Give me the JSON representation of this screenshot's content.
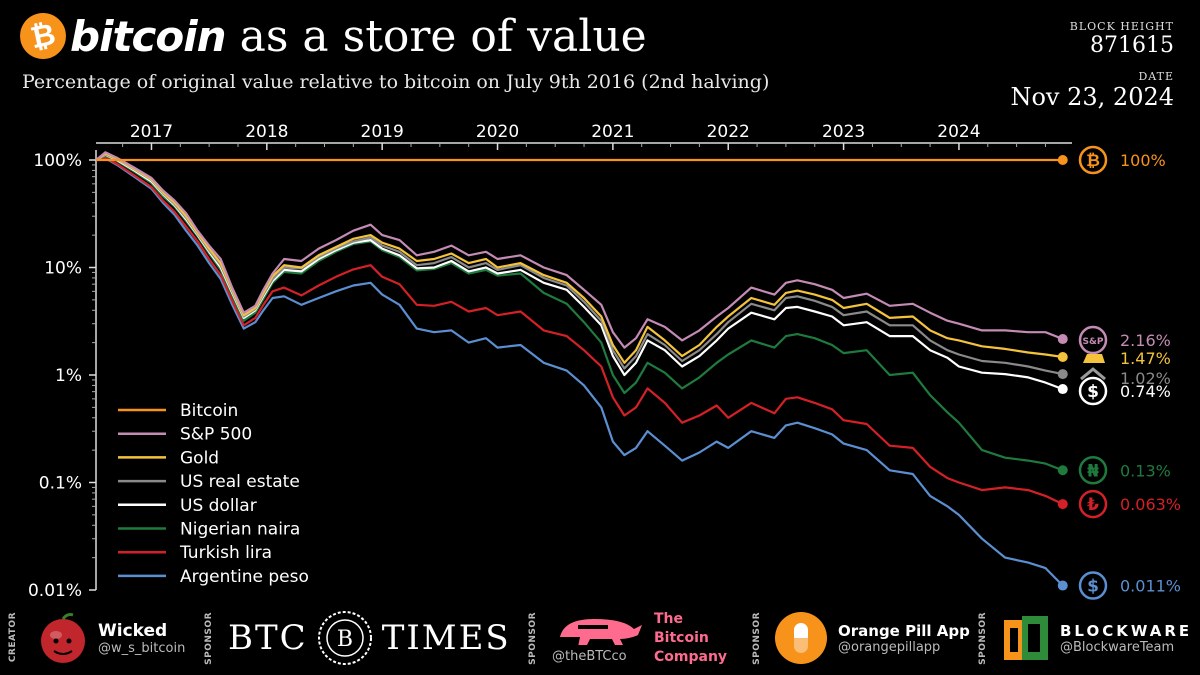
{
  "header": {
    "title_brand": "bitcoin",
    "title_rest": "as a store of value",
    "subtitle": "Percentage of original value relative to bitcoin on July 9th 2016 (2nd halving)",
    "block_height_label": "BLOCK HEIGHT",
    "block_height": "871615",
    "date_label": "DATE",
    "date": "Nov 23, 2024"
  },
  "chart_data": {
    "type": "line",
    "y_scale": "log",
    "ylim": [
      0.01,
      100
    ],
    "y_ticks": [
      "100%",
      "10%",
      "1%",
      "0.1%",
      "0.01%"
    ],
    "x_tick_labels": [
      "2017",
      "2018",
      "2019",
      "2020",
      "2021",
      "2022",
      "2023",
      "2024"
    ],
    "x_range": [
      "2016-07-09",
      "2024-11-23"
    ],
    "grid": false,
    "legend_position": "bottom-left",
    "x": [
      2016.52,
      2016.6,
      2016.7,
      2016.85,
      2017.0,
      2017.1,
      2017.2,
      2017.3,
      2017.4,
      2017.5,
      2017.6,
      2017.7,
      2017.8,
      2017.9,
      2017.97,
      2018.05,
      2018.15,
      2018.3,
      2018.45,
      2018.6,
      2018.75,
      2018.9,
      2019.0,
      2019.15,
      2019.3,
      2019.45,
      2019.6,
      2019.75,
      2019.9,
      2020.0,
      2020.2,
      2020.4,
      2020.6,
      2020.75,
      2020.9,
      2021.0,
      2021.1,
      2021.2,
      2021.3,
      2021.45,
      2021.6,
      2021.75,
      2021.9,
      2022.0,
      2022.2,
      2022.4,
      2022.5,
      2022.6,
      2022.75,
      2022.9,
      2023.0,
      2023.2,
      2023.4,
      2023.6,
      2023.75,
      2023.9,
      2024.0,
      2024.2,
      2024.4,
      2024.6,
      2024.75,
      2024.9
    ],
    "series": [
      {
        "name": "Bitcoin",
        "color": "#f7931a",
        "end_label": "100%",
        "icon": "bitcoin",
        "values": [
          100,
          100,
          100,
          100,
          100,
          100,
          100,
          100,
          100,
          100,
          100,
          100,
          100,
          100,
          100,
          100,
          100,
          100,
          100,
          100,
          100,
          100,
          100,
          100,
          100,
          100,
          100,
          100,
          100,
          100,
          100,
          100,
          100,
          100,
          100,
          100,
          100,
          100,
          100,
          100,
          100,
          100,
          100,
          100,
          100,
          100,
          100,
          100,
          100,
          100,
          100,
          100,
          100,
          100,
          100,
          100,
          100,
          100,
          100,
          100,
          100,
          100
        ]
      },
      {
        "name": "S&P 500",
        "color": "#c48bb4",
        "end_label": "2.16%",
        "icon": "sp500",
        "values": [
          100,
          118,
          105,
          85,
          68,
          52,
          42,
          32,
          22,
          16,
          12,
          6.5,
          3.8,
          4.4,
          6.2,
          8.8,
          12,
          11.5,
          15,
          18,
          22,
          25,
          20,
          18,
          13,
          14,
          16,
          13,
          14,
          12,
          13,
          10,
          8.5,
          6.2,
          4.5,
          2.5,
          1.8,
          2.2,
          3.3,
          2.8,
          2.1,
          2.6,
          3.5,
          4.2,
          6.5,
          5.6,
          7.2,
          7.6,
          7,
          6.2,
          5.2,
          5.7,
          4.4,
          4.6,
          3.8,
          3.2,
          3.0,
          2.6,
          2.6,
          2.5,
          2.5,
          2.16
        ]
      },
      {
        "name": "Gold",
        "color": "#f5c33b",
        "end_label": "1.47%",
        "icon": "gold",
        "values": [
          100,
          115,
          103,
          83,
          66,
          50,
          40,
          30,
          21,
          15,
          11,
          6.2,
          3.6,
          4.2,
          5.8,
          8.3,
          10.5,
          10,
          13,
          15.5,
          18.5,
          20,
          17,
          15,
          11.5,
          12,
          13.5,
          11,
          12,
          10,
          11,
          8.5,
          7.2,
          5.2,
          3.5,
          1.9,
          1.3,
          1.7,
          2.8,
          2.1,
          1.5,
          1.9,
          2.8,
          3.5,
          5.2,
          4.5,
          5.8,
          6.1,
          5.6,
          5,
          4.2,
          4.6,
          3.4,
          3.5,
          2.6,
          2.2,
          2.1,
          1.85,
          1.75,
          1.62,
          1.55,
          1.47
        ]
      },
      {
        "name": "US real estate",
        "color": "#8a8a8a",
        "end_label": "1.02%",
        "icon": "house",
        "values": [
          100,
          113,
          102,
          82,
          65,
          49,
          39,
          29,
          20.5,
          14.5,
          10.5,
          6.0,
          3.5,
          4.1,
          5.6,
          7.8,
          10,
          9.8,
          12.5,
          15,
          17.5,
          19,
          16,
          14,
          10.5,
          11,
          12.5,
          10,
          11,
          9.5,
          10.5,
          8,
          6.8,
          4.8,
          3.2,
          1.7,
          1.15,
          1.5,
          2.4,
          1.9,
          1.35,
          1.7,
          2.4,
          3.1,
          4.6,
          4.0,
          5.2,
          5.4,
          4.9,
          4.3,
          3.6,
          3.9,
          2.9,
          2.9,
          2.1,
          1.7,
          1.55,
          1.35,
          1.3,
          1.2,
          1.1,
          1.02
        ]
      },
      {
        "name": "US dollar",
        "color": "#ffffff",
        "end_label": "0.74%",
        "icon": "dollar",
        "values": [
          100,
          112,
          100,
          80,
          63,
          48,
          38,
          28,
          20,
          14,
          10,
          5.8,
          3.4,
          4.0,
          5.4,
          7.5,
          9.5,
          9.2,
          12,
          14.5,
          17,
          18,
          15,
          13,
          9.8,
          10,
          11.5,
          9.2,
          10,
          8.8,
          9.5,
          7.2,
          6.2,
          4.3,
          2.9,
          1.5,
          1.0,
          1.3,
          2.1,
          1.7,
          1.2,
          1.5,
          2.1,
          2.7,
          3.8,
          3.3,
          4.2,
          4.3,
          3.9,
          3.5,
          2.9,
          3.1,
          2.3,
          2.3,
          1.7,
          1.45,
          1.2,
          1.05,
          1.02,
          0.95,
          0.85,
          0.74
        ]
      },
      {
        "name": "Nigerian naira",
        "color": "#1f7a3e",
        "end_label": "0.13%",
        "icon": "naira",
        "values": [
          100,
          110,
          98,
          78,
          61,
          46,
          37,
          27,
          19.5,
          13.5,
          9.5,
          5.5,
          3.2,
          3.8,
          5.1,
          7.2,
          9.1,
          8.8,
          11.5,
          14,
          16.5,
          17.5,
          14.5,
          12.5,
          9.4,
          9.7,
          11,
          8.8,
          9.5,
          8.4,
          8.8,
          5.8,
          4.6,
          3.1,
          2.0,
          1.0,
          0.68,
          0.85,
          1.3,
          1.05,
          0.75,
          0.95,
          1.3,
          1.55,
          2.1,
          1.8,
          2.3,
          2.4,
          2.2,
          1.9,
          1.6,
          1.7,
          1.0,
          1.05,
          0.65,
          0.45,
          0.36,
          0.2,
          0.17,
          0.16,
          0.15,
          0.13
        ]
      },
      {
        "name": "Turkish lira",
        "color": "#d42027",
        "end_label": "0.063%",
        "icon": "lira",
        "values": [
          100,
          105,
          92,
          72,
          56,
          42,
          33,
          24,
          17.5,
          12,
          8.5,
          4.9,
          2.9,
          3.4,
          4.5,
          6.0,
          6.5,
          5.5,
          6.8,
          8.2,
          9.6,
          10.5,
          8.2,
          7.0,
          4.5,
          4.4,
          4.8,
          3.9,
          4.2,
          3.6,
          3.9,
          2.6,
          2.3,
          1.7,
          1.2,
          0.62,
          0.42,
          0.5,
          0.75,
          0.55,
          0.36,
          0.42,
          0.52,
          0.4,
          0.55,
          0.44,
          0.6,
          0.62,
          0.55,
          0.48,
          0.38,
          0.35,
          0.22,
          0.21,
          0.14,
          0.11,
          0.1,
          0.085,
          0.09,
          0.085,
          0.075,
          0.063
        ]
      },
      {
        "name": "Argentine peso",
        "color": "#5b8fd1",
        "end_label": "0.011%",
        "icon": "peso",
        "values": [
          100,
          104,
          90,
          70,
          54,
          40,
          31,
          22,
          16,
          11,
          7.8,
          4.5,
          2.7,
          3.1,
          4.0,
          5.2,
          5.4,
          4.5,
          5.2,
          6.0,
          6.8,
          7.2,
          5.6,
          4.5,
          2.7,
          2.5,
          2.6,
          2.0,
          2.2,
          1.8,
          1.9,
          1.3,
          1.1,
          0.8,
          0.5,
          0.24,
          0.18,
          0.21,
          0.3,
          0.22,
          0.16,
          0.19,
          0.24,
          0.21,
          0.3,
          0.26,
          0.34,
          0.36,
          0.32,
          0.28,
          0.23,
          0.2,
          0.13,
          0.12,
          0.075,
          0.06,
          0.05,
          0.03,
          0.02,
          0.018,
          0.016,
          0.011
        ]
      }
    ]
  },
  "footer": {
    "creator_label": "CREATOR",
    "creator_name": "Wicked",
    "creator_handle": "@w_s_bitcoin",
    "sponsor_label": "SPONSOR",
    "sponsor1_name_left": "BTC",
    "sponsor1_name_right": "TIMES",
    "sponsor1_emblem": "B",
    "sponsor2_handle": "@theBTCco",
    "sponsor2_name_1": "The",
    "sponsor2_name_2": "Bitcoin",
    "sponsor2_name_3": "Company",
    "sponsor3_name": "Orange Pill App",
    "sponsor3_handle": "@orangepillapp",
    "sponsor4_name": "BLOCKWARE",
    "sponsor4_handle": "@BlockwareTeam"
  }
}
